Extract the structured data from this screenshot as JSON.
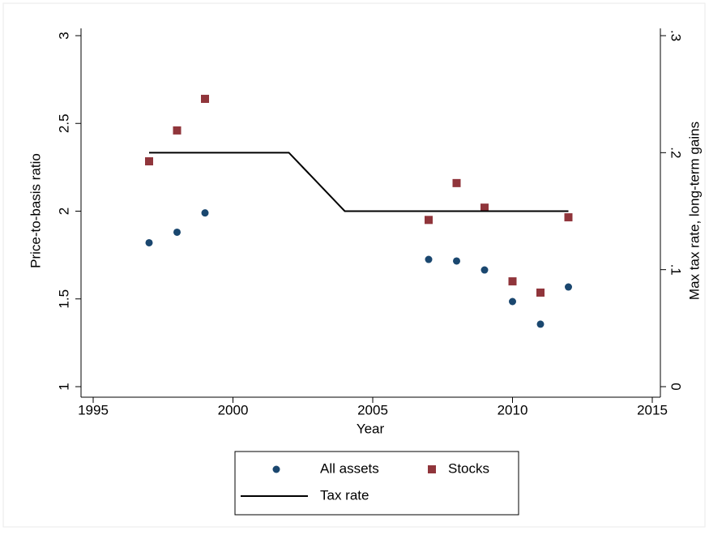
{
  "chart_data": {
    "type": "scatter",
    "x_label": "Year",
    "y_label": "Price-to-basis ratio",
    "y2_label": "Max tax rate, long-term gains",
    "xlim": [
      1995,
      2015
    ],
    "xticks": [
      1995,
      2000,
      2005,
      2010,
      2015
    ],
    "ylim": [
      1,
      3
    ],
    "yticks": [
      1,
      1.5,
      2,
      2.5,
      3
    ],
    "y2lim": [
      0,
      0.3
    ],
    "y2ticks": [
      {
        "value": 0,
        "label": "0"
      },
      {
        "value": 0.1,
        "label": ".1"
      },
      {
        "value": 0.2,
        "label": ".2"
      },
      {
        "value": 0.3,
        "label": ".3"
      }
    ],
    "legend": "bottom",
    "series": [
      {
        "name": "All assets",
        "type": "scatter",
        "marker": "circle",
        "color": "#1a476f",
        "x": [
          1997,
          1998,
          1999,
          2007,
          2008,
          2009,
          2010,
          2011,
          2012
        ],
        "values": [
          1.82,
          1.88,
          1.99,
          1.725,
          1.716,
          1.665,
          1.485,
          1.356,
          1.568
        ]
      },
      {
        "name": "Stocks",
        "type": "scatter",
        "marker": "square",
        "color": "#90353b",
        "x": [
          1997,
          1998,
          1999,
          2007,
          2008,
          2009,
          2010,
          2011,
          2012
        ],
        "values": [
          2.284,
          2.46,
          2.64,
          1.95,
          2.16,
          2.02,
          1.6,
          1.536,
          1.965
        ]
      },
      {
        "name": "Tax rate",
        "type": "line",
        "axis": "y2",
        "color": "#000000",
        "x": [
          1997,
          2002,
          2004,
          2012
        ],
        "values": [
          0.2,
          0.2,
          0.15,
          0.15
        ]
      }
    ]
  }
}
